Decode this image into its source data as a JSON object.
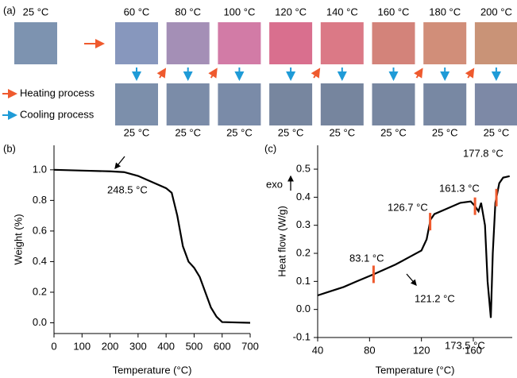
{
  "panel_a": {
    "label": "(a)",
    "heated": [
      {
        "label": "25 °C",
        "color": "#7d93b0"
      },
      {
        "label": "60 °C",
        "color": "#8797bd"
      },
      {
        "label": "80 °C",
        "color": "#a48fb6"
      },
      {
        "label": "100 °C",
        "color": "#d27ba6"
      },
      {
        "label": "120 °C",
        "color": "#d96f8e"
      },
      {
        "label": "140 °C",
        "color": "#db7986"
      },
      {
        "label": "160 °C",
        "color": "#d3837a"
      },
      {
        "label": "180 °C",
        "color": "#d18e79"
      },
      {
        "label": "200 °C",
        "color": "#c99377"
      }
    ],
    "cooled": [
      {
        "label": "25 °C",
        "color": "#7c8fab"
      },
      {
        "label": "25 °C",
        "color": "#7b8ca8"
      },
      {
        "label": "25 °C",
        "color": "#7a8ba8"
      },
      {
        "label": "25 °C",
        "color": "#77869f"
      },
      {
        "label": "25 °C",
        "color": "#76859e"
      },
      {
        "label": "25 °C",
        "color": "#7887a1"
      },
      {
        "label": "25 °C",
        "color": "#7888a3"
      },
      {
        "label": "25 °C",
        "color": "#7d89a6"
      }
    ],
    "legend": [
      {
        "text": "Heating process",
        "color": "#ef5a2e"
      },
      {
        "text": "Cooling process",
        "color": "#1f9bd7"
      }
    ]
  },
  "chart_data": [
    {
      "type": "line",
      "panel_label": "(b)",
      "x_label": "Temperature (°C)",
      "y_label": "Weight (%)",
      "x": [
        0,
        100,
        200,
        250,
        300,
        350,
        400,
        420,
        440,
        460,
        480,
        500,
        520,
        540,
        560,
        580,
        600,
        700
      ],
      "series": [
        {
          "color": "#000000",
          "values": [
            1.0,
            0.995,
            0.99,
            0.985,
            0.96,
            0.92,
            0.88,
            0.85,
            0.7,
            0.5,
            0.4,
            0.36,
            0.3,
            0.2,
            0.1,
            0.04,
            0.005,
            0.0
          ]
        }
      ],
      "xlim": [
        0,
        700
      ],
      "xticks": [
        0,
        100,
        200,
        300,
        400,
        500,
        600,
        700
      ],
      "ylim": [
        -0.07,
        1.16
      ],
      "yticks": [
        {
          "value": 0,
          "label": "0.0"
        },
        {
          "value": 0.2,
          "label": "0.2"
        },
        {
          "value": 0.4,
          "label": "0.4"
        },
        {
          "value": 0.6,
          "label": "0.6"
        },
        {
          "value": 0.8,
          "label": "0.8"
        },
        {
          "value": 1,
          "label": "1.0"
        }
      ],
      "annotations": [
        "248.5 °C"
      ]
    },
    {
      "type": "line",
      "panel_label": "(c)",
      "x_label": "Temperature (°C)",
      "y_label": "Heat flow (W/g)",
      "x": [
        40,
        50,
        60,
        70,
        83,
        100,
        110,
        120,
        124,
        127,
        130,
        140,
        150,
        158,
        161,
        164,
        166,
        169,
        171,
        173.5,
        175,
        177,
        180,
        183,
        188
      ],
      "series": [
        {
          "color": "#000000",
          "values": [
            0.05,
            0.065,
            0.08,
            0.1,
            0.125,
            0.16,
            0.185,
            0.21,
            0.25,
            0.32,
            0.34,
            0.36,
            0.38,
            0.385,
            0.37,
            0.35,
            0.38,
            0.3,
            0.1,
            -0.03,
            0.2,
            0.38,
            0.45,
            0.47,
            0.475
          ]
        }
      ],
      "xlim": [
        40,
        190
      ],
      "xticks": [
        40,
        80,
        120,
        160
      ],
      "ylim": [
        -0.1,
        0.585
      ],
      "yticks": [
        -0.1,
        {
          "value": 0,
          "label": "0.0"
        },
        0.1,
        0.2,
        0.3,
        0.4,
        0.5
      ],
      "markers": [
        83.1,
        126.7,
        161.3,
        177.8
      ],
      "marker_color": "#ef5a2e",
      "annotations": [
        "exo",
        "83.1 °C",
        "121.2 °C",
        "126.7 °C",
        "161.3 °C",
        "177.8 °C",
        "173.5 °C"
      ]
    }
  ]
}
